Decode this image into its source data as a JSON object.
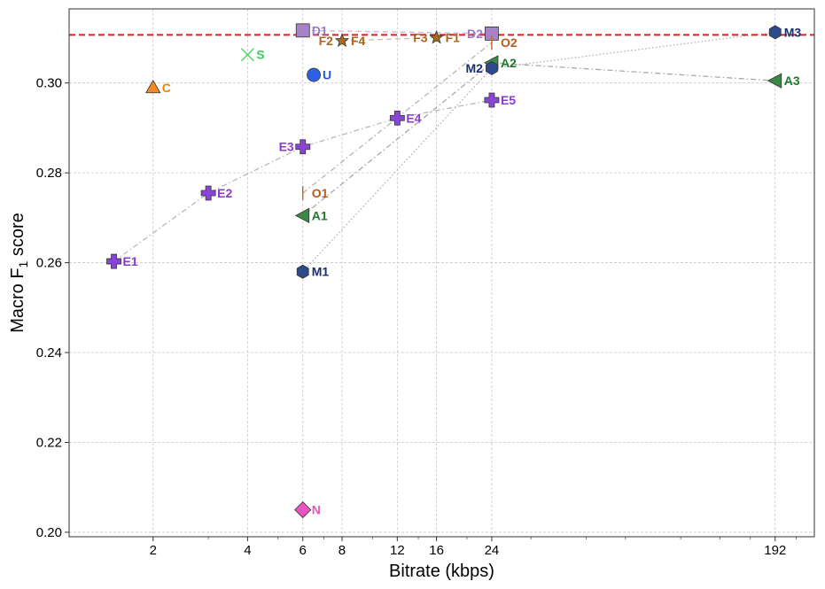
{
  "chart_data": {
    "type": "scatter",
    "title": "",
    "xlabel": "Bitrate (kbps)",
    "ylabel_main": "Macro F",
    "ylabel_sub": "1",
    "ylabel_tail": " score",
    "xscale": "log2",
    "xlim": [
      1.08,
      256
    ],
    "ylim": [
      0.199,
      0.3165
    ],
    "xticks": [
      2,
      4,
      6,
      8,
      12,
      16,
      24,
      192
    ],
    "xtick_labels": [
      "2",
      "4",
      "6",
      "8",
      "12",
      "16",
      "24",
      "192"
    ],
    "yticks": [
      0.2,
      0.22,
      0.24,
      0.26,
      0.28,
      0.3
    ],
    "ytick_labels": [
      "0.20",
      "0.22",
      "0.24",
      "0.26",
      "0.28",
      "0.30"
    ],
    "grid": true,
    "reference_line": {
      "y": 0.3107,
      "color": "#e8191c",
      "style": "dashed"
    },
    "points": [
      {
        "label": "E1",
        "x": 1.5,
        "y": 0.2603,
        "marker": "plus",
        "color": "#8a44d6",
        "label_color": "#8a38d8",
        "label_side": "right"
      },
      {
        "label": "E2",
        "x": 3,
        "y": 0.2755,
        "marker": "plus",
        "color": "#8a44d6",
        "label_color": "#8a38d8",
        "label_side": "right"
      },
      {
        "label": "E3",
        "x": 6,
        "y": 0.2858,
        "marker": "plus",
        "color": "#8a44d6",
        "label_color": "#8a38d8",
        "label_side": "left"
      },
      {
        "label": "E4",
        "x": 12,
        "y": 0.2922,
        "marker": "plus",
        "color": "#8a44d6",
        "label_color": "#8a38d8",
        "label_side": "right"
      },
      {
        "label": "E5",
        "x": 24,
        "y": 0.2962,
        "marker": "plus",
        "color": "#8a44d6",
        "label_color": "#8a38d8",
        "label_side": "right"
      },
      {
        "label": "C",
        "x": 2,
        "y": 0.299,
        "marker": "triangle-up",
        "color": "#f58a25",
        "label_color": "#f07f11",
        "label_side": "right"
      },
      {
        "label": "S",
        "x": 4,
        "y": 0.3063,
        "marker": "x",
        "color": "#56d26a",
        "label_color": "#3fcc5a",
        "label_side": "right"
      },
      {
        "label": "U",
        "x": 6.5,
        "y": 0.3018,
        "marker": "circle",
        "color": "#2f5fe6",
        "label_color": "#2355e0",
        "label_side": "right"
      },
      {
        "label": "D1",
        "x": 6,
        "y": 0.3117,
        "marker": "square",
        "color": "#a782c9",
        "label_color": "#9d79c8",
        "label_side": "right"
      },
      {
        "label": "D2",
        "x": 24,
        "y": 0.311,
        "marker": "square",
        "color": "#a782c9",
        "label_color": "#9d79c8",
        "label_side": "left"
      },
      {
        "label": "F2",
        "x": 8,
        "y": 0.3094,
        "marker": "star",
        "color": "#a86a1f",
        "label_color": "#b0651c",
        "label_side": "left"
      },
      {
        "label": "F4",
        "x": 8,
        "y": 0.3094,
        "marker": "none",
        "color": "#a86a1f",
        "label_color": "#b0651c",
        "label_side": "right"
      },
      {
        "label": "F3",
        "x": 16,
        "y": 0.3101,
        "marker": "star",
        "color": "#a86a1f",
        "label_color": "#b0651c",
        "label_side": "left"
      },
      {
        "label": "F1",
        "x": 16,
        "y": 0.3101,
        "marker": "none",
        "color": "#a86a1f",
        "label_color": "#b0651c",
        "label_side": "right"
      },
      {
        "label": "O1",
        "x": 6,
        "y": 0.2755,
        "marker": "vline",
        "color": "#c86a2a",
        "label_color": "#b85a1c",
        "label_side": "right"
      },
      {
        "label": "O2",
        "x": 24,
        "y": 0.309,
        "marker": "vline",
        "color": "#c86a2a",
        "label_color": "#b85a1c",
        "label_side": "right"
      },
      {
        "label": "A1",
        "x": 6,
        "y": 0.2705,
        "marker": "triangle-left",
        "color": "#3a8a45",
        "label_color": "#1f7a2c",
        "label_side": "right"
      },
      {
        "label": "A2",
        "x": 24,
        "y": 0.3045,
        "marker": "triangle-left",
        "color": "#3a8a45",
        "label_color": "#1f7a2c",
        "label_side": "right"
      },
      {
        "label": "A3",
        "x": 192,
        "y": 0.3005,
        "marker": "triangle-left",
        "color": "#3a8a45",
        "label_color": "#1f7a2c",
        "label_side": "right"
      },
      {
        "label": "M1",
        "x": 6,
        "y": 0.258,
        "marker": "hexagon",
        "color": "#2c4a8c",
        "label_color": "#1a2f6e",
        "label_side": "right"
      },
      {
        "label": "M2",
        "x": 24,
        "y": 0.3033,
        "marker": "hexagon",
        "color": "#2c4a8c",
        "label_color": "#1a2f6e",
        "label_side": "left"
      },
      {
        "label": "M3",
        "x": 192,
        "y": 0.3113,
        "marker": "hexagon",
        "color": "#2c4a8c",
        "label_color": "#1a2f6e",
        "label_side": "right"
      },
      {
        "label": "N",
        "x": 6,
        "y": 0.205,
        "marker": "diamond",
        "color": "#e955c0",
        "label_color": "#e455c0",
        "label_side": "right"
      }
    ],
    "connectors": [
      {
        "name": "E-series",
        "points": [
          [
            1.5,
            0.2603
          ],
          [
            3,
            0.2755
          ],
          [
            6,
            0.2858
          ],
          [
            12,
            0.2922
          ],
          [
            24,
            0.2962
          ]
        ],
        "color": "#b8b8b8",
        "style": "dashdot"
      },
      {
        "name": "D-series",
        "points": [
          [
            6,
            0.3117
          ],
          [
            24,
            0.311
          ]
        ],
        "color": "#c9b3dd",
        "style": "dashed"
      },
      {
        "name": "F-series",
        "points": [
          [
            8,
            0.3094
          ],
          [
            16,
            0.3101
          ]
        ],
        "color": "#d0c0a8",
        "style": "dashed"
      },
      {
        "name": "O-series",
        "points": [
          [
            6,
            0.2755
          ],
          [
            24,
            0.309
          ]
        ],
        "color": "#b4b4b4",
        "style": "dashdot"
      },
      {
        "name": "A-series",
        "points": [
          [
            6,
            0.2705
          ],
          [
            24,
            0.3045
          ],
          [
            192,
            0.3005
          ]
        ],
        "color": "#a8a8a8",
        "style": "dashdot"
      },
      {
        "name": "M-series",
        "points": [
          [
            6,
            0.258
          ],
          [
            24,
            0.3033
          ],
          [
            192,
            0.3113
          ]
        ],
        "color": "#b0b0b0",
        "style": "dotted"
      }
    ]
  }
}
